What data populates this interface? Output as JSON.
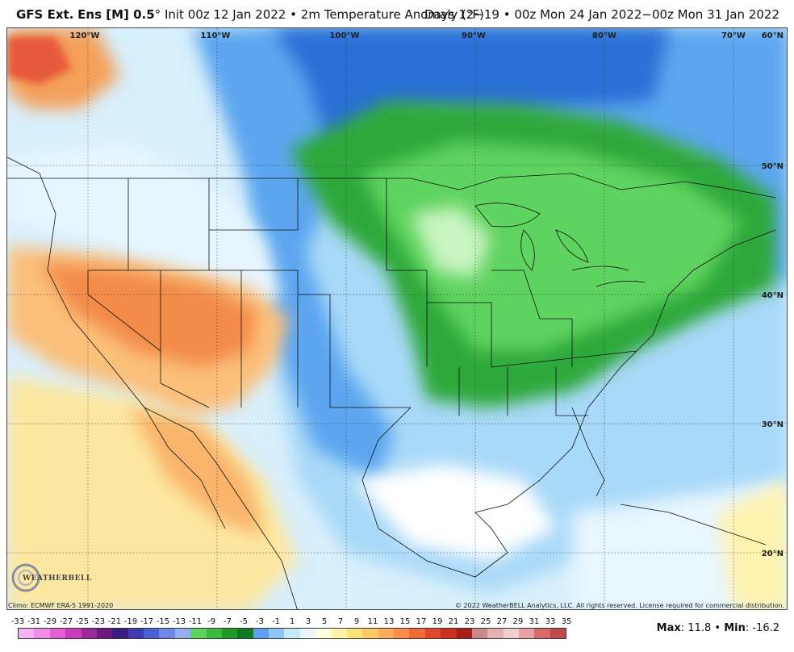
{
  "header": {
    "model": "GFS Ext.",
    "ensemble": "Ens [M] 0.5",
    "degree": "°",
    "init": "Init 00z 12 Jan 2022",
    "bullet": "•",
    "field": "2m Temperature Anomaly (°F)",
    "valid": "Days 12−19 • 00z Mon 24 Jan 2022−00z Mon 31 Jan 2022"
  },
  "map": {
    "longitudes": [
      "120°W",
      "110°W",
      "100°W",
      "90°W",
      "80°W",
      "70°W"
    ],
    "latitudes": [
      "60°N",
      "50°N",
      "40°N",
      "30°N",
      "20°N"
    ],
    "anomaly_regions": [
      {
        "region": "Northeast / Great Lakes / Midwest / Southeast",
        "anomaly": "cold",
        "color": "#34b34a"
      },
      {
        "region": "Southwest / Four Corners / Great Basin",
        "anomaly": "warm",
        "color": "#f38b4a"
      },
      {
        "region": "Northern Rockies / Plains / Gulf",
        "anomaly": "cool",
        "color": "#3c7fe0"
      },
      {
        "region": "Gulf of Mexico / Caribbean",
        "anomaly": "near normal",
        "color": "#ffffff"
      }
    ]
  },
  "footer": {
    "climo": "Climo: ECMWF ERA-5 1991-2020",
    "copyright": "© 2022 WeatherBELL Analytics, LLC. All rights reserved. License required for commercial distribution."
  },
  "logo": {
    "text": "WEATHERBELL"
  },
  "scale": {
    "labels": [
      "-33",
      "-31",
      "-29",
      "-27",
      "-25",
      "-23",
      "-21",
      "-19",
      "-17",
      "-15",
      "-13",
      "-11",
      "-9",
      "-7",
      "-5",
      "-3",
      "-1",
      "1",
      "3",
      "5",
      "7",
      "9",
      "11",
      "13",
      "15",
      "17",
      "19",
      "21",
      "23",
      "25",
      "27",
      "29",
      "31",
      "33",
      "35"
    ],
    "colors": [
      "#f7b2f2",
      "#ee8ce6",
      "#e25fd6",
      "#c93cbe",
      "#9a2a9a",
      "#6a1a7a",
      "#3a1b86",
      "#3e3bb3",
      "#4c61d1",
      "#6f87e6",
      "#98aef1",
      "#5ed35e",
      "#3bbb3b",
      "#1f9a2a",
      "#0f7a1f",
      "#5fa0f0",
      "#8fc6f7",
      "#c6e9fa",
      "#e9f7ff",
      "#ffffe0",
      "#fff3a6",
      "#ffe27a",
      "#ffc966",
      "#ffac5a",
      "#ff8d4b",
      "#f26a3a",
      "#e0462c",
      "#c9301f",
      "#a81d18",
      "#c98a8a",
      "#e2b2b2",
      "#f0cfcf",
      "#e8a0a0",
      "#d86a6a",
      "#c04a4a"
    ]
  },
  "stats": {
    "max_label": "Max",
    "max_value": "11.8",
    "min_label": "Min",
    "min_value": "-16.2"
  }
}
